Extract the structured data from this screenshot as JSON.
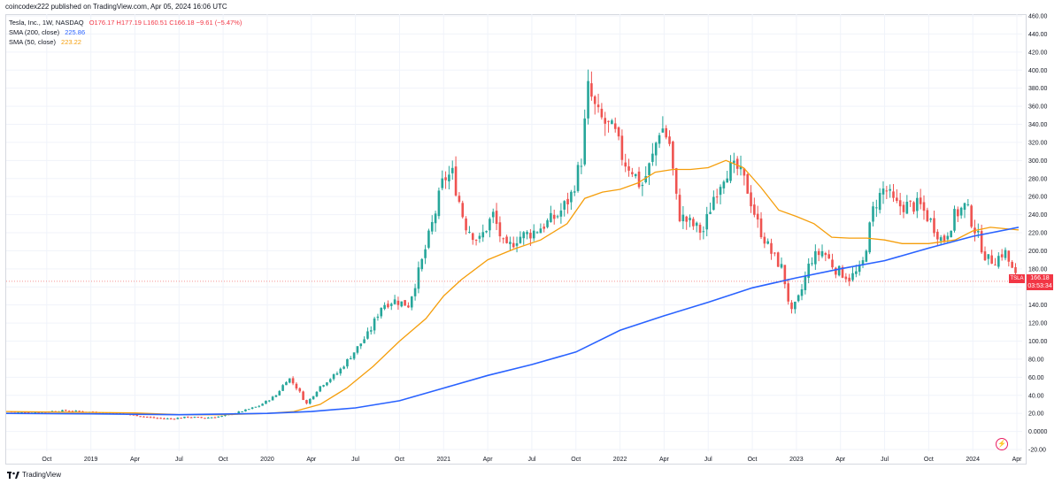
{
  "header": {
    "published": "coincodex222 published on TradingView.com, Apr 05, 2024 16:06 UTC"
  },
  "legend": {
    "symbol": "Tesla, Inc., 1W, NASDAQ",
    "ohlc": "O176.17 H177.19 L160.51 C166.18 −9.61 (−5.47%)",
    "sma200_label": "SMA (200, close)",
    "sma200_value": "225.86",
    "sma50_label": "SMA (50, close)",
    "sma50_value": "223.22"
  },
  "price_badge": {
    "ticker": "TSLA",
    "price": "166.18",
    "countdown": "03:53:34"
  },
  "footer": {
    "brand": "TradingView"
  },
  "colors": {
    "up": "#26a69a",
    "down": "#ef5350",
    "sma200": "#2962ff",
    "sma50": "#f59e0b",
    "grid": "#f0f3fa"
  },
  "chart_data": {
    "type": "candlestick",
    "ylim": [
      -20,
      460
    ],
    "y_ticks": [
      "460.00",
      "440.00",
      "420.00",
      "400.00",
      "380.00",
      "360.00",
      "340.00",
      "320.00",
      "300.00",
      "280.00",
      "260.00",
      "240.00",
      "220.00",
      "200.00",
      "180.00",
      "160.00",
      "140.00",
      "120.00",
      "100.00",
      "80.00",
      "60.00",
      "40.00",
      "20.00",
      "0.0000",
      "-20.00"
    ],
    "x_ticks": [
      "Oct",
      "2019",
      "Apr",
      "Jul",
      "Oct",
      "2020",
      "Apr",
      "Jul",
      "Oct",
      "2021",
      "Apr",
      "Jul",
      "Oct",
      "2022",
      "Apr",
      "Jul",
      "Oct",
      "2023",
      "Apr",
      "Jul",
      "Oct",
      "2024",
      "Apr"
    ],
    "x_tick_positions": [
      2018.75,
      2019.0,
      2019.25,
      2019.5,
      2019.75,
      2020.0,
      2020.25,
      2020.5,
      2020.75,
      2021.0,
      2021.25,
      2021.5,
      2021.75,
      2022.0,
      2022.25,
      2022.5,
      2022.75,
      2023.0,
      2023.25,
      2023.5,
      2023.75,
      2024.0,
      2024.25
    ],
    "x_range": [
      2018.52,
      2024.28
    ],
    "close_path": [
      [
        2018.55,
        22
      ],
      [
        2018.65,
        21
      ],
      [
        2018.75,
        22
      ],
      [
        2018.85,
        23
      ],
      [
        2018.95,
        22
      ],
      [
        2019.05,
        21
      ],
      [
        2019.15,
        20
      ],
      [
        2019.25,
        18
      ],
      [
        2019.35,
        15
      ],
      [
        2019.45,
        14
      ],
      [
        2019.55,
        16
      ],
      [
        2019.65,
        15
      ],
      [
        2019.75,
        17
      ],
      [
        2019.85,
        22
      ],
      [
        2019.95,
        28
      ],
      [
        2020.05,
        40
      ],
      [
        2020.12,
        60
      ],
      [
        2020.18,
        45
      ],
      [
        2020.22,
        30
      ],
      [
        2020.3,
        50
      ],
      [
        2020.4,
        65
      ],
      [
        2020.5,
        90
      ],
      [
        2020.58,
        110
      ],
      [
        2020.65,
        140
      ],
      [
        2020.72,
        145
      ],
      [
        2020.8,
        140
      ],
      [
        2020.88,
        190
      ],
      [
        2020.95,
        240
      ],
      [
        2021.0,
        280
      ],
      [
        2021.05,
        285
      ],
      [
        2021.12,
        230
      ],
      [
        2021.2,
        210
      ],
      [
        2021.28,
        240
      ],
      [
        2021.35,
        200
      ],
      [
        2021.42,
        215
      ],
      [
        2021.5,
        220
      ],
      [
        2021.58,
        230
      ],
      [
        2021.65,
        240
      ],
      [
        2021.72,
        260
      ],
      [
        2021.78,
        300
      ],
      [
        2021.82,
        380
      ],
      [
        2021.87,
        350
      ],
      [
        2021.92,
        340
      ],
      [
        2021.97,
        330
      ],
      [
        2022.02,
        300
      ],
      [
        2022.07,
        290
      ],
      [
        2022.12,
        270
      ],
      [
        2022.18,
        300
      ],
      [
        2022.23,
        340
      ],
      [
        2022.28,
        320
      ],
      [
        2022.33,
        240
      ],
      [
        2022.4,
        230
      ],
      [
        2022.47,
        220
      ],
      [
        2022.53,
        260
      ],
      [
        2022.6,
        290
      ],
      [
        2022.67,
        290
      ],
      [
        2022.72,
        270
      ],
      [
        2022.78,
        230
      ],
      [
        2022.85,
        200
      ],
      [
        2022.92,
        180
      ],
      [
        2022.97,
        130
      ],
      [
        2023.02,
        150
      ],
      [
        2023.08,
        190
      ],
      [
        2023.15,
        200
      ],
      [
        2023.22,
        180
      ],
      [
        2023.3,
        170
      ],
      [
        2023.37,
        180
      ],
      [
        2023.44,
        250
      ],
      [
        2023.5,
        270
      ],
      [
        2023.56,
        250
      ],
      [
        2023.63,
        250
      ],
      [
        2023.7,
        250
      ],
      [
        2023.77,
        230
      ],
      [
        2023.83,
        210
      ],
      [
        2023.9,
        240
      ],
      [
        2023.96,
        250
      ],
      [
        2024.02,
        220
      ],
      [
        2024.08,
        190
      ],
      [
        2024.13,
        190
      ],
      [
        2024.18,
        200
      ],
      [
        2024.23,
        175
      ],
      [
        2024.26,
        166
      ]
    ],
    "sma200_path": [
      [
        2018.52,
        20
      ],
      [
        2019.0,
        19.5
      ],
      [
        2019.5,
        18.5
      ],
      [
        2020.0,
        20
      ],
      [
        2020.25,
        22
      ],
      [
        2020.5,
        26
      ],
      [
        2020.75,
        34
      ],
      [
        2021.0,
        48
      ],
      [
        2021.25,
        62
      ],
      [
        2021.5,
        74
      ],
      [
        2021.75,
        88
      ],
      [
        2022.0,
        112
      ],
      [
        2022.25,
        128
      ],
      [
        2022.5,
        143
      ],
      [
        2022.75,
        159
      ],
      [
        2023.0,
        170
      ],
      [
        2023.25,
        180
      ],
      [
        2023.5,
        189
      ],
      [
        2023.75,
        203
      ],
      [
        2024.0,
        216
      ],
      [
        2024.26,
        226
      ]
    ],
    "sma50_path": [
      [
        2018.52,
        22
      ],
      [
        2019.0,
        21
      ],
      [
        2019.25,
        20.5
      ],
      [
        2019.5,
        18.5
      ],
      [
        2019.75,
        18.5
      ],
      [
        2020.0,
        20
      ],
      [
        2020.15,
        22
      ],
      [
        2020.3,
        30
      ],
      [
        2020.45,
        48
      ],
      [
        2020.6,
        72
      ],
      [
        2020.75,
        100
      ],
      [
        2020.9,
        125
      ],
      [
        2021.0,
        150
      ],
      [
        2021.1,
        168
      ],
      [
        2021.25,
        190
      ],
      [
        2021.4,
        202
      ],
      [
        2021.55,
        212
      ],
      [
        2021.7,
        230
      ],
      [
        2021.8,
        258
      ],
      [
        2021.9,
        265
      ],
      [
        2022.0,
        268
      ],
      [
        2022.1,
        275
      ],
      [
        2022.2,
        287
      ],
      [
        2022.3,
        290
      ],
      [
        2022.4,
        290
      ],
      [
        2022.5,
        292
      ],
      [
        2022.6,
        300
      ],
      [
        2022.7,
        292
      ],
      [
        2022.8,
        270
      ],
      [
        2022.9,
        245
      ],
      [
        2023.0,
        238
      ],
      [
        2023.1,
        230
      ],
      [
        2023.2,
        215
      ],
      [
        2023.3,
        214
      ],
      [
        2023.4,
        214
      ],
      [
        2023.5,
        212
      ],
      [
        2023.6,
        208
      ],
      [
        2023.75,
        208
      ],
      [
        2023.9,
        212
      ],
      [
        2024.0,
        222
      ],
      [
        2024.1,
        226
      ],
      [
        2024.26,
        223
      ]
    ],
    "candles_weekly_noise": true
  }
}
